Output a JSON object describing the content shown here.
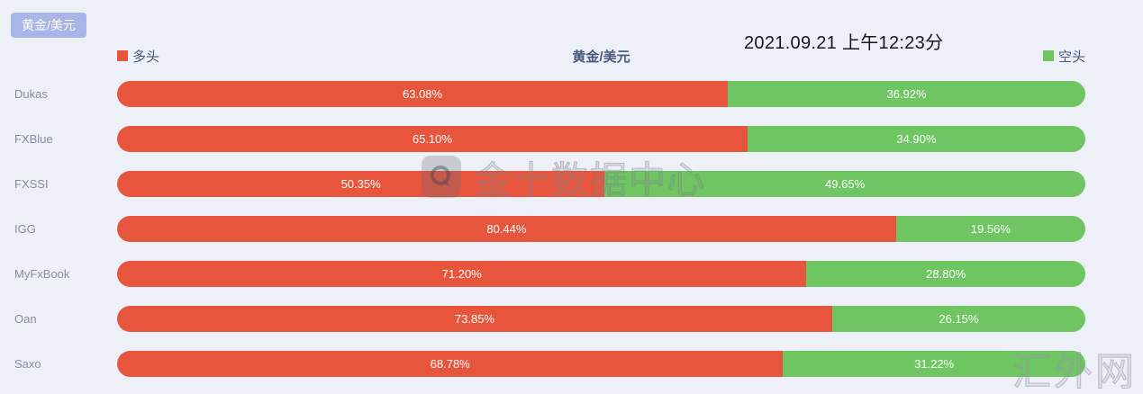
{
  "header": {
    "pair_badge": "黄金/美元",
    "datetime": "2021.09.21 上午12:23分"
  },
  "watermarks": {
    "center": "金十数据中心",
    "corner": "汇外网"
  },
  "colors": {
    "long": "#e8553d",
    "short": "#6ec562",
    "background": "#eef0f7",
    "badge_bg": "#a8b5e6",
    "label_text": "#878ea3",
    "title_text": "#47587e"
  },
  "chart_data": {
    "type": "bar",
    "orientation": "horizontal",
    "stacked_percent": true,
    "title": "黄金/美元",
    "legend_position": "top",
    "categories": [
      "Dukas",
      "FXBlue",
      "FXSSI",
      "IGG",
      "MyFxBook",
      "Oan",
      "Saxo"
    ],
    "series": [
      {
        "name": "多头",
        "color": "#e8553d",
        "values": [
          63.08,
          65.1,
          50.35,
          80.44,
          71.2,
          73.85,
          68.78
        ],
        "labels": [
          "63.08%",
          "65.10%",
          "50.35%",
          "80.44%",
          "71.20%",
          "73.85%",
          "68.78%"
        ]
      },
      {
        "name": "空头",
        "color": "#6ec562",
        "values": [
          36.92,
          34.9,
          49.65,
          19.56,
          28.8,
          26.15,
          31.22
        ],
        "labels": [
          "36.92%",
          "34.90%",
          "49.65%",
          "19.56%",
          "28.80%",
          "26.15%",
          "31.22%"
        ]
      }
    ]
  }
}
